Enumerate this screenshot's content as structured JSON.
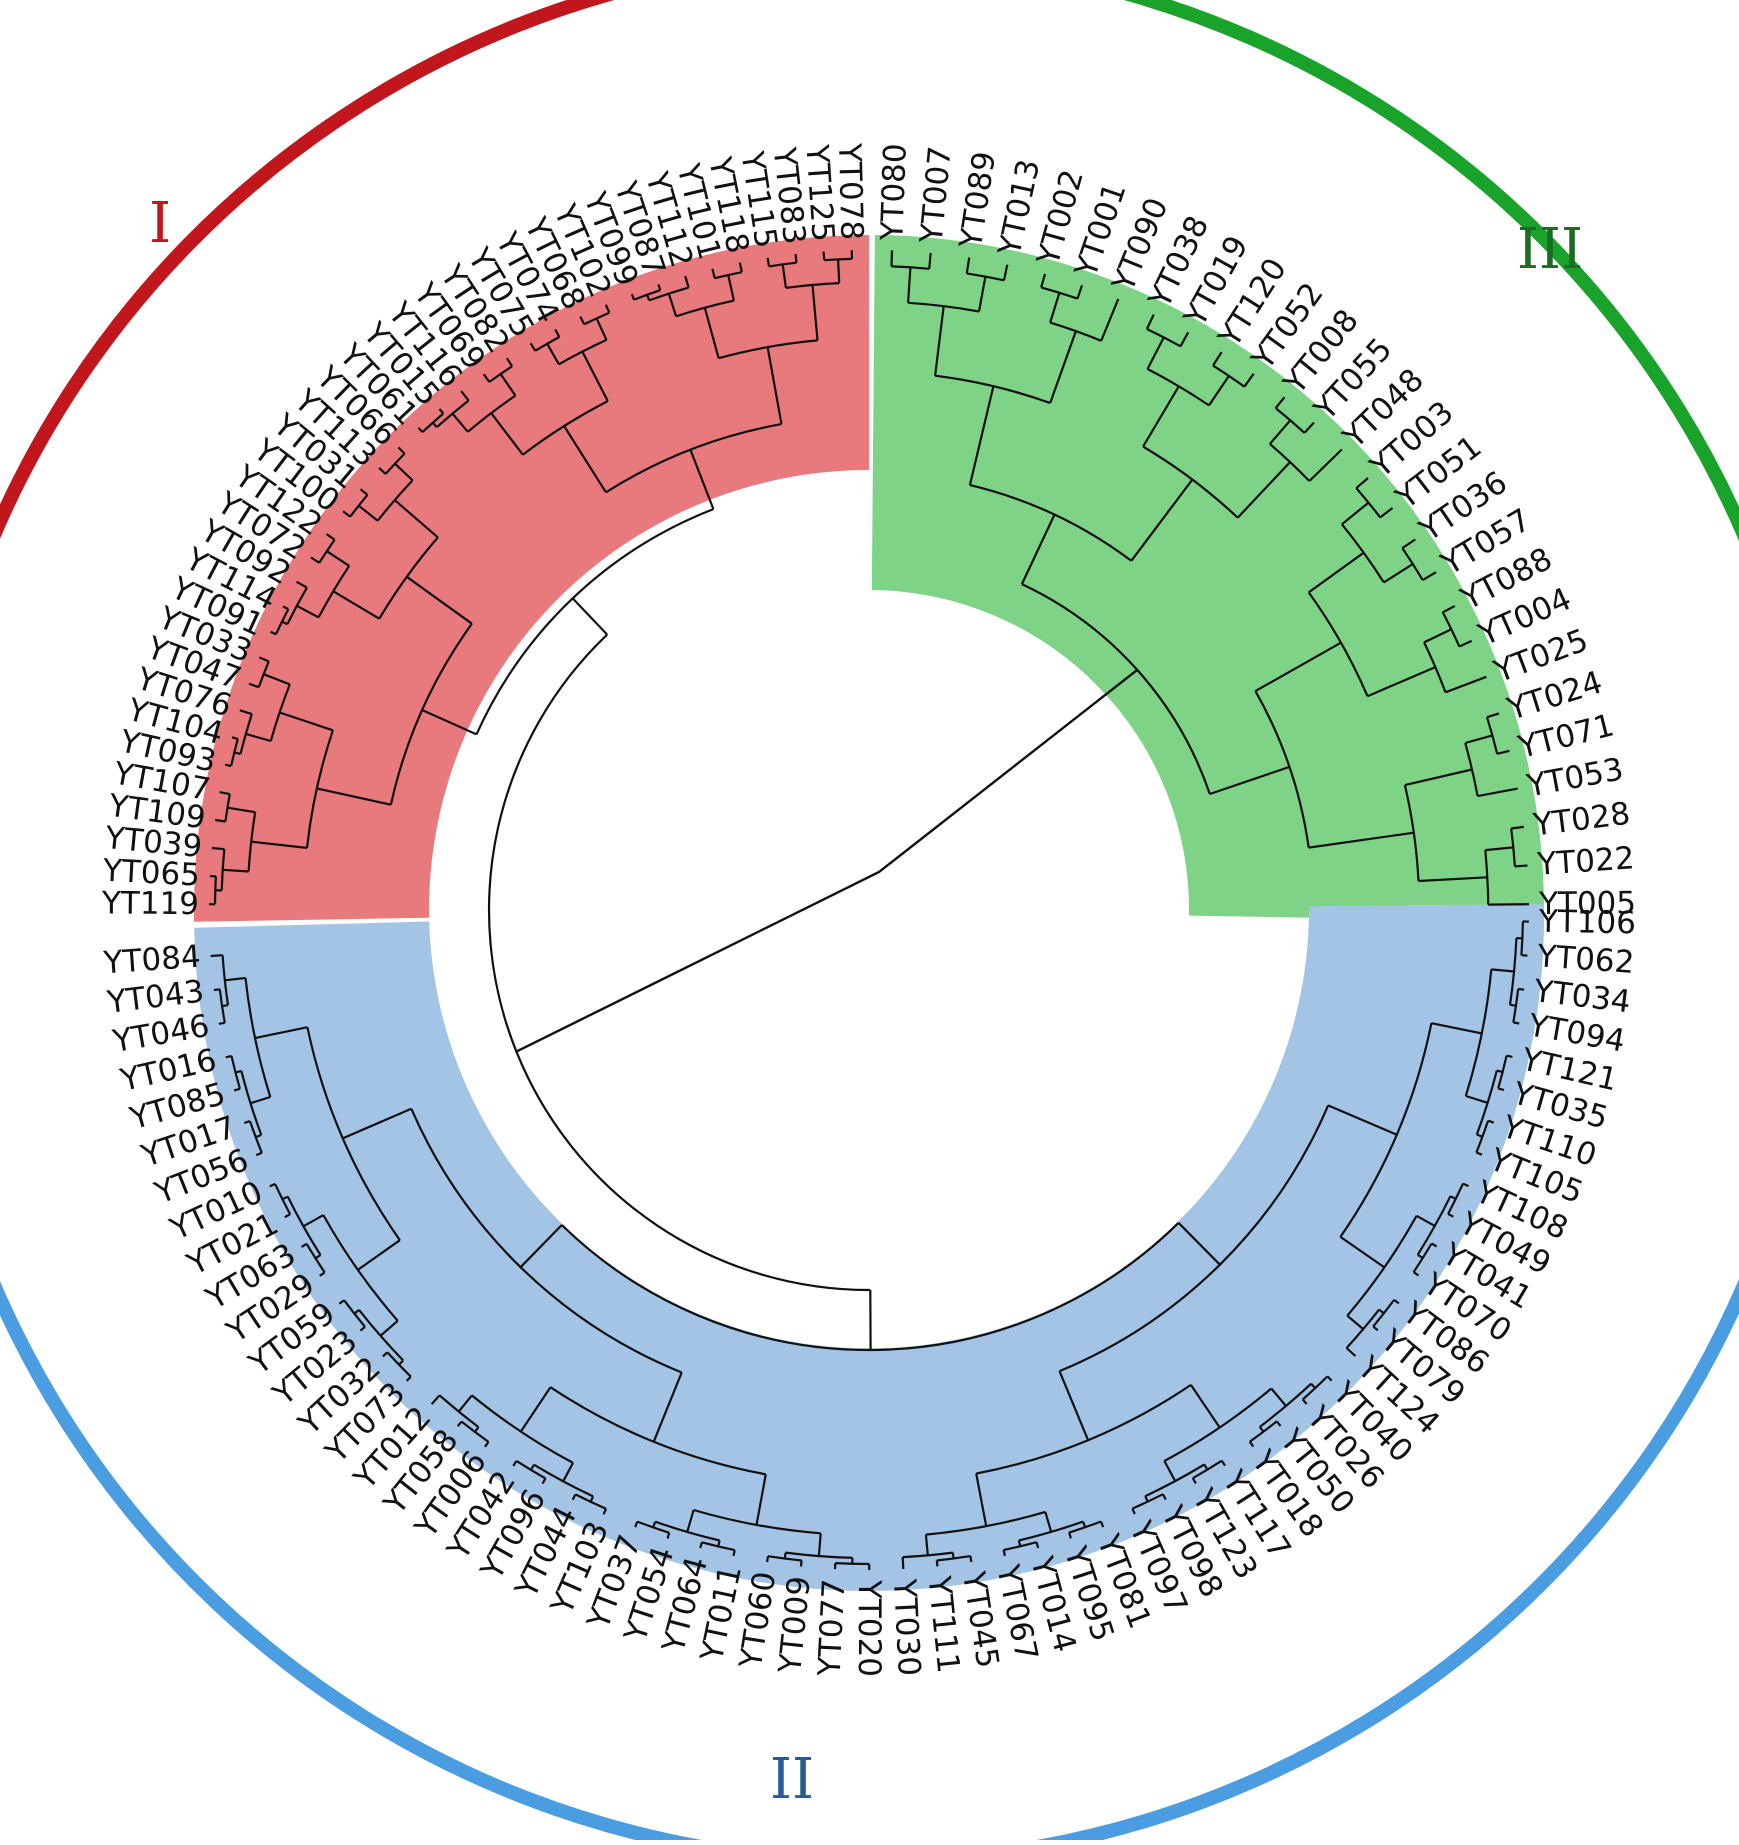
{
  "colors": {
    "I": "#c0161c",
    "II": "#4a9de0",
    "III": "#1aa32a",
    "I_fill": "#e8797c",
    "II_fill": "#a4c4e6",
    "III_fill": "#7fd387",
    "III_label": "#1e6b23",
    "II_label": "#2a5a98",
    "branch": "#111111"
  },
  "clusters": [
    {
      "id": "I",
      "label": "I"
    },
    {
      "id": "II",
      "label": "II"
    },
    {
      "id": "III",
      "label": "III"
    }
  ],
  "leaves": {
    "III": [
      "YT005",
      "YT022",
      "YT028",
      "YT053",
      "YT071",
      "YT024",
      "YT025",
      "YT004",
      "YT088",
      "YT057",
      "YT036",
      "YT051",
      "YT003",
      "YT048",
      "YT055",
      "YT008",
      "YT052",
      "YT120",
      "YT019",
      "YT038",
      "YT090",
      "YT001",
      "YT002",
      "YT013",
      "YT089",
      "YT007",
      "YT080"
    ],
    "I": [
      "YT078",
      "YT125",
      "YT083",
      "YT115",
      "YT118",
      "YT101",
      "YT112",
      "YT087",
      "YT099",
      "YT102",
      "YT068",
      "YT074",
      "YT075",
      "YT082",
      "YT069",
      "YT116",
      "YT015",
      "YT061",
      "YT066",
      "YT113",
      "YT031",
      "YT100",
      "YT122",
      "YT072",
      "YT092",
      "YT114",
      "YT091",
      "YT033",
      "YT047",
      "YT076",
      "YT104",
      "YT093",
      "YT107",
      "YT109",
      "YT039",
      "YT065",
      "YT119"
    ],
    "II": [
      "YT084",
      "YT043",
      "YT046",
      "YT016",
      "YT085",
      "YT017",
      "YT056",
      "YT010",
      "YT021",
      "YT063",
      "YT029",
      "YT059",
      "YT023",
      "YT032",
      "YT073",
      "YT012",
      "YT058",
      "YT006",
      "YT042",
      "YT096",
      "YT044",
      "YT103",
      "YT037",
      "YT054",
      "YT064",
      "YT011",
      "YT060",
      "YT009",
      "YT077",
      "YT020",
      "YT030",
      "YT111",
      "YT045",
      "YT067",
      "YT014",
      "YT095",
      "YT081",
      "YT097",
      "YT098",
      "YT123",
      "YT117",
      "YT018",
      "YT050",
      "YT026",
      "YT040",
      "YT124",
      "YT079",
      "YT086",
      "YT070",
      "YT041",
      "YT049",
      "YT108",
      "YT105",
      "YT110",
      "YT035",
      "YT121",
      "YT094",
      "YT034",
      "YT062",
      "YT106"
    ]
  }
}
